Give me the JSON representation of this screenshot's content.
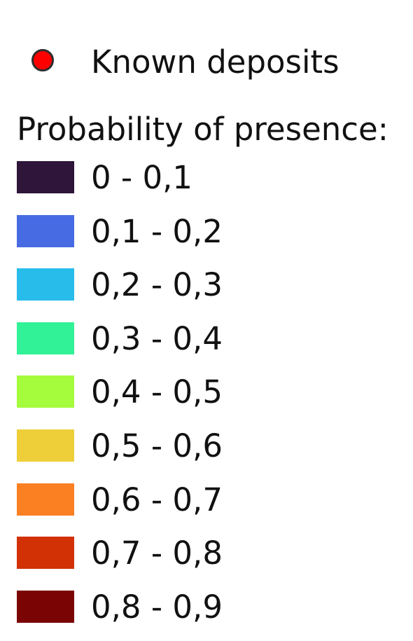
{
  "deposits": {
    "label": "Known deposits",
    "dot_fill": "#ff0000",
    "dot_stroke": "#2e2e2e",
    "icon": "circle-marker-icon"
  },
  "probability": {
    "title": "Probability of presence:",
    "classes": [
      {
        "label": "0 - 0,1",
        "color": "#2f1539"
      },
      {
        "label": "0,1 - 0,2",
        "color": "#466be3"
      },
      {
        "label": "0,2 - 0,3",
        "color": "#28bceb"
      },
      {
        "label": "0,3 - 0,4",
        "color": "#32f298"
      },
      {
        "label": "0,4 - 0,5",
        "color": "#a4fc3c"
      },
      {
        "label": "0,5 - 0,6",
        "color": "#eecf3a"
      },
      {
        "label": "0,6 - 0,7",
        "color": "#fb8022"
      },
      {
        "label": "0,7 - 0,8",
        "color": "#d23105"
      },
      {
        "label": "0,8 - 0,9",
        "color": "#7a0403"
      }
    ]
  }
}
